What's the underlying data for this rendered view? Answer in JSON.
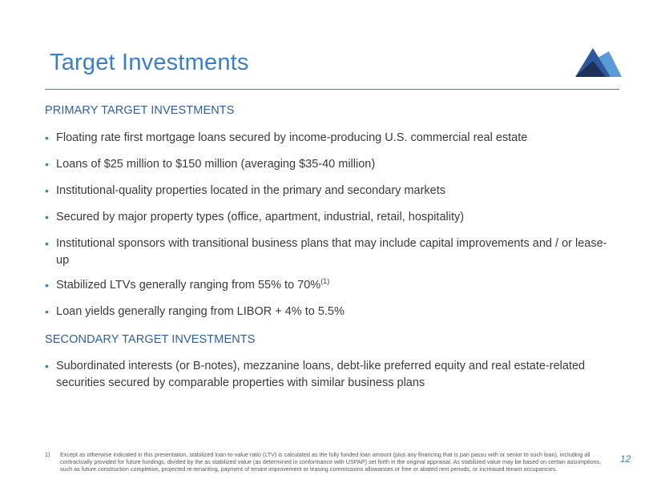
{
  "title": "Target Investments",
  "primary_heading": "PRIMARY TARGET INVESTMENTS",
  "primary_bullets": [
    "Floating rate first mortgage loans secured by income-producing U.S. commercial real estate",
    "Loans of $25 million to $150 million (averaging $35-40 million)",
    "Institutional-quality properties located in the primary and secondary markets",
    "Secured by major property types (office, apartment, industrial, retail, hospitality)",
    "Institutional sponsors with transitional business plans that may include capital improvements and / or lease-up",
    "Stabilized LTVs generally ranging from 55% to 70%",
    "Loan yields generally ranging from LIBOR + 4% to 5.5%"
  ],
  "ltv_footnote_marker": "(1)",
  "secondary_heading": "SECONDARY TARGET INVESTMENTS",
  "secondary_bullets": [
    "Subordinated interests (or B-notes), mezzanine loans, debt-like preferred equity and real estate-related securities secured by comparable properties with similar business plans"
  ],
  "footnote_number": "1)",
  "footnote_text": "Except as otherwise indicated in this presentation, stabilized loan-to-value ratio (LTV) is calculated as the fully funded loan amount (plus any financing that is pari passu with or senior to such loan), including all contractually provided for future fundings, divided by the as stabilized value (as determined in conformance with USPAP) set forth in the original appraisal. As stabilized value may be based on certain assumptions, such as future construction completion, projected re-tenanting, payment of tenant improvement or leasing commissions allowances or free or abated rent periods, or increased tenant occupancies.",
  "page_number": "12",
  "bullet_glyph": "•",
  "colors": {
    "title": "#3b7fc4",
    "heading": "#2e5f99",
    "rule": "#3b7fc4",
    "logo_dark": "#1f2f5c",
    "logo_mid": "#2d5a9e",
    "logo_light": "#5b9bd5"
  }
}
